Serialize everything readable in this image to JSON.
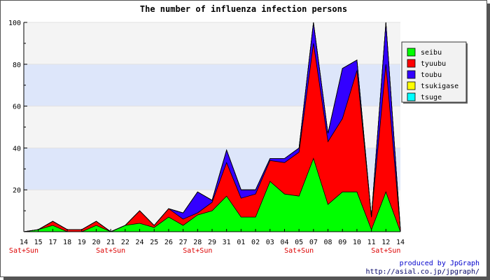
{
  "chart_data": {
    "type": "area",
    "stacked": true,
    "title": "The number of influenza infection persons",
    "categories": [
      "14",
      "15",
      "17",
      "18",
      "19",
      "20",
      "21",
      "22",
      "24",
      "25",
      "26",
      "27",
      "28",
      "29",
      "31",
      "01",
      "02",
      "03",
      "04",
      "05",
      "07",
      "08",
      "09",
      "10",
      "11",
      "12",
      "14"
    ],
    "sublabels": [
      "Sat+Sun",
      "",
      "",
      "",
      "",
      "",
      "Sat+Sun",
      "",
      "",
      "",
      "",
      "",
      "Sat+Sun",
      "",
      "",
      "",
      "",
      "",
      "",
      "Sat+Sun",
      "",
      "",
      "",
      "",
      "",
      "Sat+Sun",
      ""
    ],
    "ylim": [
      0,
      100
    ],
    "yticks": [
      20,
      40,
      60,
      80,
      100
    ],
    "ytick_labels": [
      "20",
      "40",
      "60",
      "80",
      "100"
    ],
    "grid": true,
    "legend_position": "right",
    "series": [
      {
        "name": "seibu",
        "color": "#00ff00",
        "values": [
          0,
          1,
          3,
          0,
          0,
          3,
          0,
          3,
          4,
          2,
          7,
          3,
          8,
          10,
          17,
          7,
          7,
          24,
          18,
          17,
          35,
          13,
          19,
          19,
          1,
          19,
          0
        ]
      },
      {
        "name": "tyuubu",
        "color": "#ff0000",
        "values": [
          0,
          0,
          2,
          1,
          1,
          2,
          0,
          0,
          6,
          1,
          4,
          3,
          1,
          4,
          16,
          9,
          11,
          10,
          15,
          21,
          55,
          30,
          35,
          58,
          6,
          61,
          1
        ]
      },
      {
        "name": "toubu",
        "color": "#3300ff",
        "values": [
          0,
          0,
          0,
          0,
          0,
          0,
          0,
          0,
          0,
          0,
          0,
          3,
          10,
          1,
          6,
          4,
          2,
          1,
          2,
          2,
          10,
          4,
          24,
          5,
          0,
          20,
          0
        ]
      },
      {
        "name": "tsukigase",
        "color": "#ffff00",
        "values": [
          0,
          0,
          0,
          0,
          0,
          0,
          0,
          0,
          0,
          0,
          0,
          0,
          0,
          0,
          0,
          0,
          0,
          0,
          0,
          0,
          0,
          0,
          0,
          0,
          0,
          0,
          0
        ]
      },
      {
        "name": "tsuge",
        "color": "#00ffff",
        "values": [
          0,
          0,
          0,
          0,
          0,
          0,
          0,
          0,
          0,
          0,
          0,
          0,
          0,
          0,
          0,
          0,
          0,
          0,
          0,
          0,
          0,
          0,
          0,
          0,
          0,
          0,
          0
        ]
      }
    ]
  },
  "footer": {
    "credit": "produced by JpGraph",
    "url": "http://asial.co.jp/jpgraph/"
  }
}
